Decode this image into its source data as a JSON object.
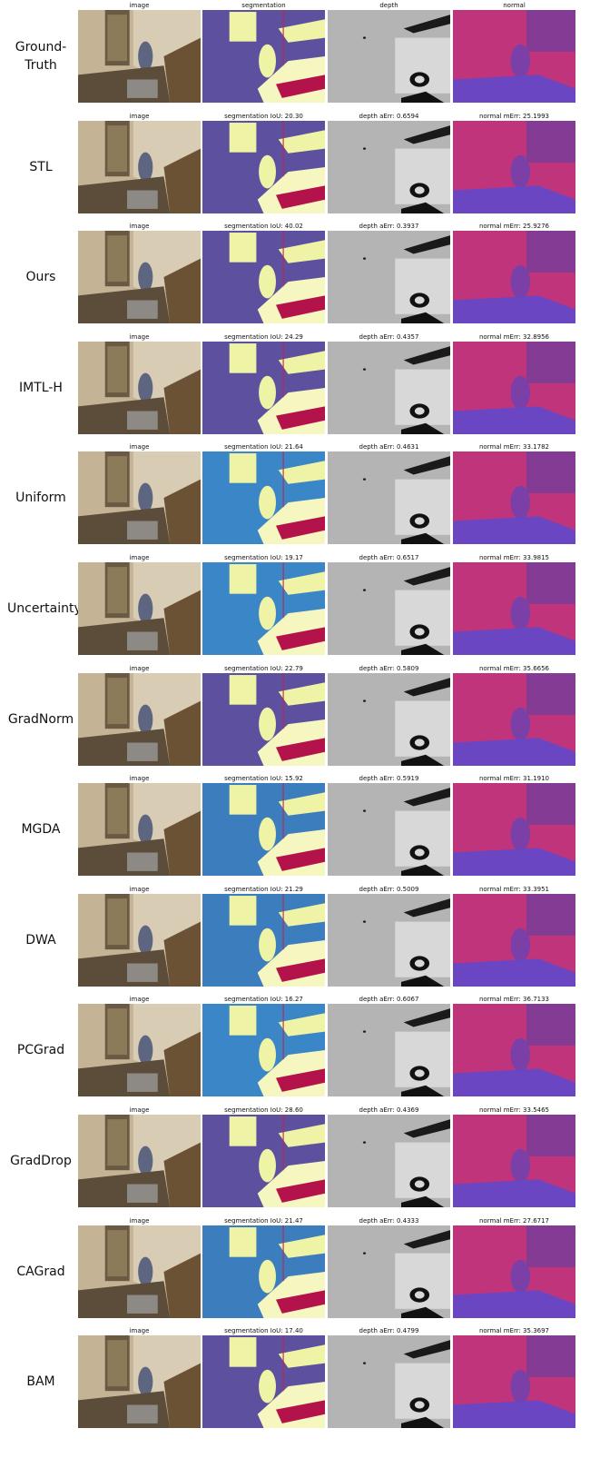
{
  "rows": [
    {
      "label": "Ground-Truth",
      "captions": [
        "image",
        "segmentation",
        "depth",
        "normal"
      ],
      "segmentation_color": "#5c509f"
    },
    {
      "label": "STL",
      "captions": [
        "image",
        "segmentation IoU: 20.30",
        "depth aErr: 0.6594",
        "normal mErr: 25.1993"
      ],
      "segmentation_color": "#5c509f"
    },
    {
      "label": "Ours",
      "captions": [
        "image",
        "segmentation IoU: 40.02",
        "depth aErr: 0.3937",
        "normal mErr: 25.9276"
      ],
      "segmentation_color": "#5c509f"
    },
    {
      "label": "IMTL-H",
      "captions": [
        "image",
        "segmentation IoU: 24.29",
        "depth aErr: 0.4357",
        "normal mErr: 32.8956"
      ],
      "segmentation_color": "#5c509f"
    },
    {
      "label": "Uniform",
      "captions": [
        "image",
        "segmentation IoU: 21.64",
        "depth aErr: 0.4631",
        "normal mErr: 33.1782"
      ],
      "segmentation_color": "#3a86c6"
    },
    {
      "label": "Uncertainty",
      "captions": [
        "image",
        "segmentation IoU: 19.17",
        "depth aErr: 0.6517",
        "normal mErr: 33.9815"
      ],
      "segmentation_color": "#3a86c6"
    },
    {
      "label": "GradNorm",
      "captions": [
        "image",
        "segmentation IoU: 22.79",
        "depth aErr: 0.5809",
        "normal mErr: 35.6656"
      ],
      "segmentation_color": "#5c509f"
    },
    {
      "label": "MGDA",
      "captions": [
        "image",
        "segmentation IoU: 15.92",
        "depth aErr: 0.5919",
        "normal mErr: 31.1910"
      ],
      "segmentation_color": "#3c7dbd"
    },
    {
      "label": "DWA",
      "captions": [
        "image",
        "segmentation IoU: 21.29",
        "depth aErr: 0.5009",
        "normal mErr: 33.3951"
      ],
      "segmentation_color": "#3c7dbd"
    },
    {
      "label": "PCGrad",
      "captions": [
        "image",
        "segmentation IoU: 16.27",
        "depth aErr: 0.6067",
        "normal mErr: 36.7133"
      ],
      "segmentation_color": "#3a86c6"
    },
    {
      "label": "GradDrop",
      "captions": [
        "image",
        "segmentation IoU: 28.60",
        "depth aErr: 0.4369",
        "normal mErr: 33.5465"
      ],
      "segmentation_color": "#5c509f"
    },
    {
      "label": "CAGrad",
      "captions": [
        "image",
        "segmentation IoU: 21.47",
        "depth aErr: 0.4333",
        "normal mErr: 27.6717"
      ],
      "segmentation_color": "#3c7dbd"
    },
    {
      "label": "BAM",
      "captions": [
        "image",
        "segmentation IoU: 17.40",
        "depth aErr: 0.4799",
        "normal mErr: 35.3697"
      ],
      "segmentation_color": "#5c509f"
    }
  ]
}
